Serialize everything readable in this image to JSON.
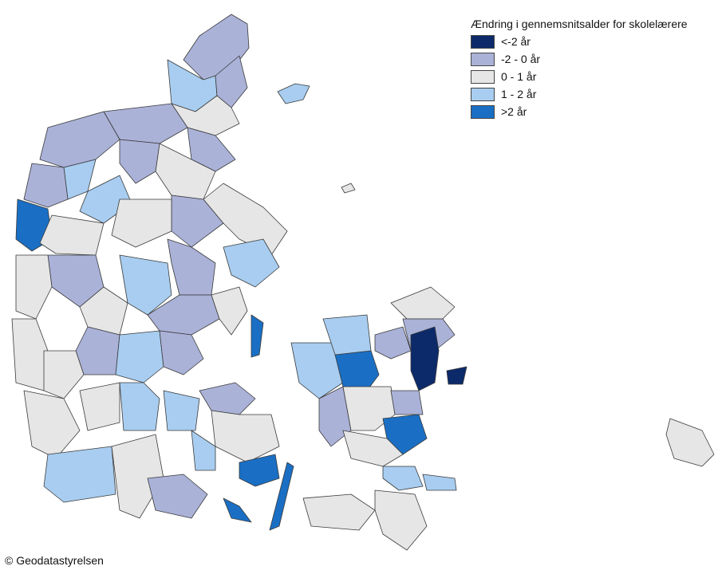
{
  "legend": {
    "title": "Ændring i gennemsnitsalder for skolelærere",
    "items": [
      {
        "label": "<-2 år",
        "color": "#0c2a6a"
      },
      {
        "label": "-2 - 0 år",
        "color": "#aab2d8"
      },
      {
        "label": "0 - 1 år",
        "color": "#e6e6e6"
      },
      {
        "label": "1 - 2 år",
        "color": "#a8cdf0"
      },
      {
        "label": ">2 år",
        "color": "#1a6fc4"
      }
    ]
  },
  "copyright": "© Geodatastyrelsen"
}
